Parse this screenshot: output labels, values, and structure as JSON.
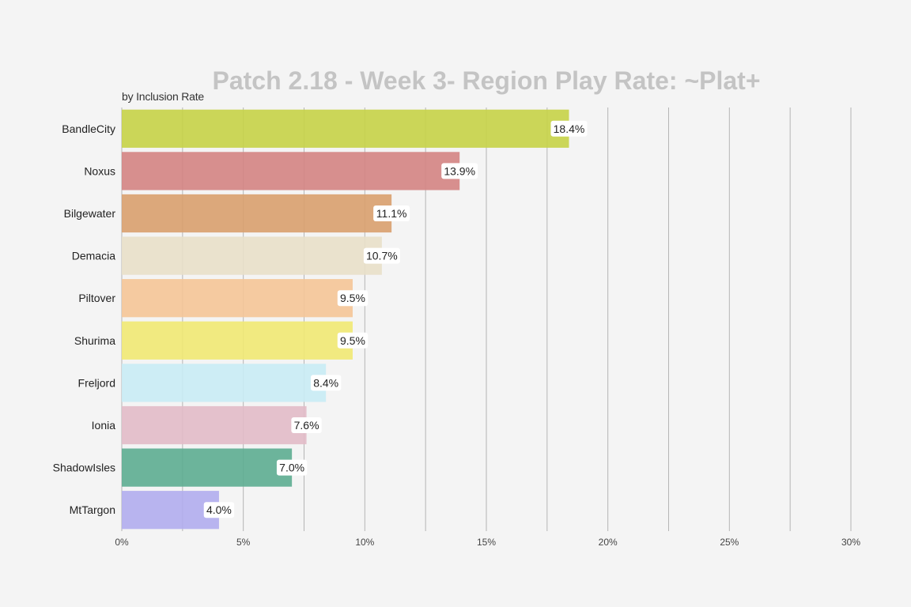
{
  "chart_data": {
    "type": "bar",
    "orientation": "horizontal",
    "title": "Patch 2.18 - Week 3- Region Play Rate: ~Plat+",
    "subtitle": "by Inclusion Rate",
    "categories": [
      "BandleCity",
      "Noxus",
      "Bilgewater",
      "Demacia",
      "Piltover",
      "Shurima",
      "Freljord",
      "Ionia",
      "ShadowIsles",
      "MtTargon"
    ],
    "values": [
      18.4,
      13.9,
      11.1,
      10.7,
      9.5,
      9.5,
      8.4,
      7.6,
      7.0,
      4.0
    ],
    "data_labels": [
      "18.4%",
      "13.9%",
      "11.1%",
      "10.7%",
      "9.5%",
      "9.5%",
      "8.4%",
      "7.6%",
      "7.0%",
      "4.0%"
    ],
    "colors": [
      "#c7d34a",
      "#d48684",
      "#d9a170",
      "#e8e0c9",
      "#f4c598",
      "#f0e875",
      "#c9ecf4",
      "#e2bcc8",
      "#5fae93",
      "#b2aeee"
    ],
    "xlim": [
      0,
      30
    ],
    "x_ticks": [
      0,
      5,
      10,
      15,
      20,
      25,
      30
    ],
    "x_tick_labels": [
      "0%",
      "5%",
      "10%",
      "15%",
      "20%",
      "25%",
      "30%"
    ],
    "grid": true
  }
}
